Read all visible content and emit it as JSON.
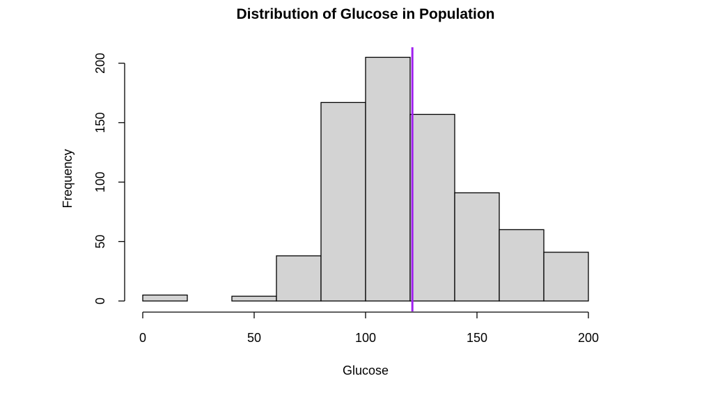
{
  "chart_data": {
    "type": "bar",
    "title": "Distribution of Glucose in Population",
    "xlabel": "Glucose",
    "ylabel": "Frequency",
    "bins": [
      {
        "start": 0,
        "end": 20,
        "count": 5
      },
      {
        "start": 20,
        "end": 40,
        "count": 0
      },
      {
        "start": 40,
        "end": 60,
        "count": 4
      },
      {
        "start": 60,
        "end": 80,
        "count": 38
      },
      {
        "start": 80,
        "end": 100,
        "count": 167
      },
      {
        "start": 100,
        "end": 120,
        "count": 205
      },
      {
        "start": 120,
        "end": 140,
        "count": 157
      },
      {
        "start": 140,
        "end": 160,
        "count": 91
      },
      {
        "start": 160,
        "end": 180,
        "count": 60
      },
      {
        "start": 180,
        "end": 200,
        "count": 41
      }
    ],
    "xlim": [
      0,
      200
    ],
    "ylim": [
      0,
      205
    ],
    "x_ticks": [
      0,
      50,
      100,
      150,
      200
    ],
    "y_ticks": [
      0,
      50,
      100,
      150,
      200
    ],
    "mean_line": {
      "value": 121,
      "color": "#a020f0"
    },
    "bar_color": "#d3d3d3",
    "grid": false
  }
}
